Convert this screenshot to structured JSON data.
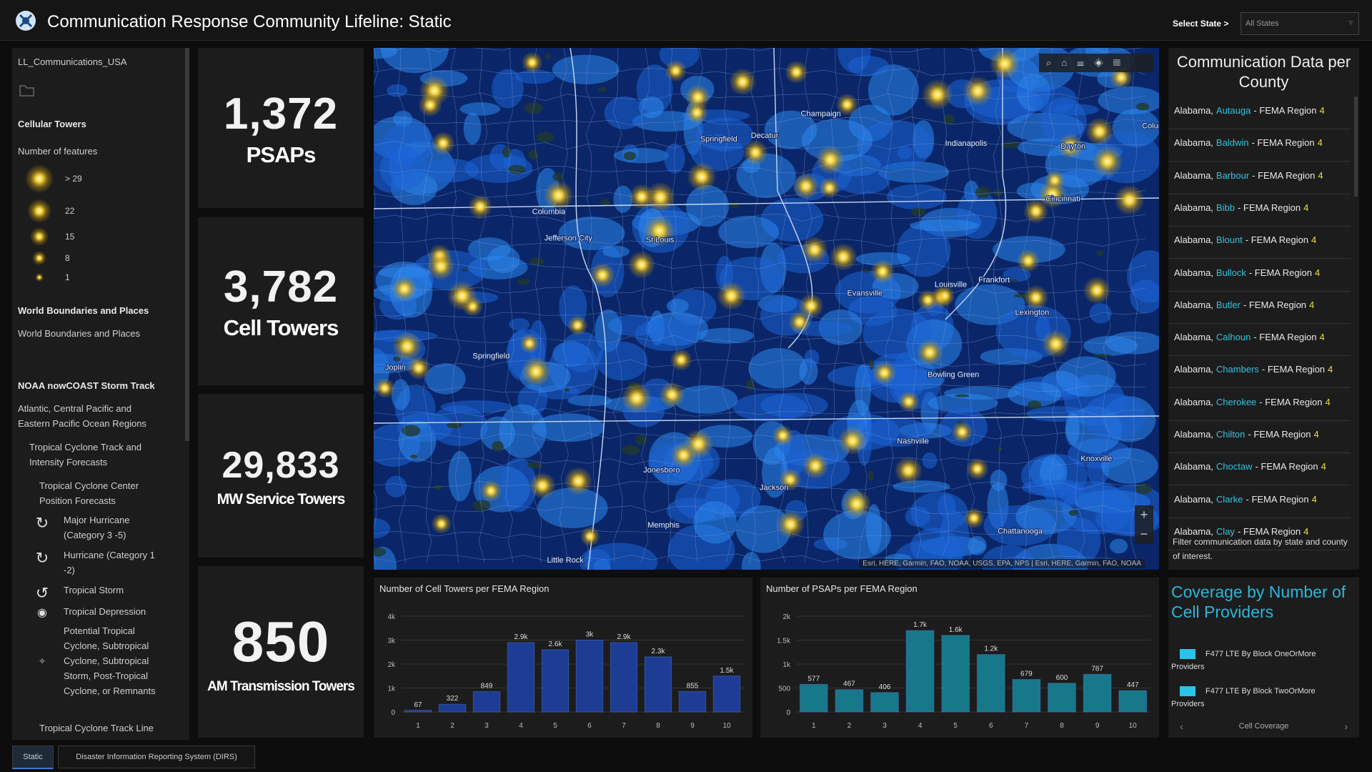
{
  "header": {
    "title": "Communication Response Community Lifeline: Static",
    "select_label": "Select State >",
    "select_value": "All States"
  },
  "layers": {
    "title": "LL_Communications_USA",
    "cellular": "Cellular Towers",
    "count_label": "Number of features",
    "sizes": [
      "> 29",
      "22",
      "15",
      "8",
      "1"
    ],
    "world_heading": "World Boundaries and Places",
    "world_item": "World Boundaries and Places",
    "noaa_heading": "NOAA nowCOAST Storm Track",
    "region_item": "Atlantic, Central Pacific and Eastern Pacific Ocean Regions",
    "track_item": "Tropical Cyclone Track and Intensity Forecasts",
    "center_item": "Tropical Cyclone Center Position Forecasts",
    "symbols": [
      "Major Hurricane (Category 3 -5)",
      "Hurricane (Category 1 -2)",
      "Tropical Storm",
      "Tropical Depression",
      "Potential Tropical Cyclone, Subtropical Cyclone, Subtropical Storm, Post-Tropical Cyclone, or Remnants"
    ],
    "track_line": "Tropical Cyclone Track Line"
  },
  "stats": [
    {
      "value": "1,372",
      "label": "PSAPs"
    },
    {
      "value": "3,782",
      "label": "Cell Towers"
    },
    {
      "value": "29,833",
      "label": "MW Service Towers"
    },
    {
      "value": "850",
      "label": "AM Transmission Towers"
    }
  ],
  "map": {
    "cities": [
      "Springfield",
      "Champaign",
      "Decatur",
      "Indianapolis",
      "Columbia",
      "Jefferson City",
      "St Louis",
      "Springfield",
      "Joplin",
      "Evansville",
      "Louisville",
      "Frankfort",
      "Bowling Green",
      "Nashville",
      "Knoxville",
      "Jackson",
      "Memphis",
      "Little Rock",
      "Chattanooga",
      "Jonesboro",
      "Cincinnati",
      "Dayton",
      "Columbus",
      "Lexington"
    ],
    "attribution": "Esri, HERE, Garmin, FAO, NOAA, USGS, EPA, NPS | Esri, HERE, Garmin, FAO, NOAA"
  },
  "county_list": {
    "title": "Communication Data per County",
    "items": [
      {
        "state": "Alabama,",
        "county": "Autauga",
        "label": "- FEMA Region",
        "region": "4"
      },
      {
        "state": "Alabama,",
        "county": "Baldwin",
        "label": "- FEMA Region",
        "region": "4"
      },
      {
        "state": "Alabama,",
        "county": "Barbour",
        "label": "- FEMA Region",
        "region": "4"
      },
      {
        "state": "Alabama,",
        "county": "Bibb",
        "label": "- FEMA Region",
        "region": "4"
      },
      {
        "state": "Alabama,",
        "county": "Blount",
        "label": "- FEMA Region",
        "region": "4"
      },
      {
        "state": "Alabama,",
        "county": "Bullock",
        "label": "- FEMA Region",
        "region": "4"
      },
      {
        "state": "Alabama,",
        "county": "Butler",
        "label": "- FEMA Region",
        "region": "4"
      },
      {
        "state": "Alabama,",
        "county": "Calhoun",
        "label": "- FEMA Region",
        "region": "4"
      },
      {
        "state": "Alabama,",
        "county": "Chambers",
        "label": "- FEMA Region",
        "region": "4"
      },
      {
        "state": "Alabama,",
        "county": "Cherokee",
        "label": "- FEMA Region",
        "region": "4"
      },
      {
        "state": "Alabama,",
        "county": "Chilton",
        "label": "- FEMA Region",
        "region": "4"
      },
      {
        "state": "Alabama,",
        "county": "Choctaw",
        "label": "- FEMA Region",
        "region": "4"
      },
      {
        "state": "Alabama,",
        "county": "Clarke",
        "label": "- FEMA Region",
        "region": "4"
      },
      {
        "state": "Alabama,",
        "county": "Clay",
        "label": "- FEMA Region",
        "region": "4"
      }
    ],
    "footer": "Filter communication data by state and county of interest."
  },
  "coverage": {
    "title": "Coverage by Number of Cell Providers",
    "legend": [
      "F477 LTE By Block OneOrMore Providers",
      "F477 LTE By Block TwoOrMore Providers"
    ],
    "nav": "Cell Coverage"
  },
  "tabs": [
    "Static",
    "Disaster Information Reporting System (DIRS)"
  ],
  "chart_data": [
    {
      "type": "bar",
      "title": "Number of Cell Towers per FEMA Region",
      "categories": [
        "1",
        "2",
        "3",
        "4",
        "5",
        "6",
        "7",
        "8",
        "9",
        "10"
      ],
      "values": [
        67,
        322,
        849,
        2900,
        2600,
        3000,
        2900,
        2300,
        855,
        1500
      ],
      "value_labels": [
        "67",
        "322",
        "849",
        "2.9k",
        "2.6k",
        "3k",
        "2.9k",
        "2.3k",
        "855",
        "1.5k"
      ],
      "color": "#1d3c94",
      "ylim": [
        0,
        4000
      ],
      "yticks": [
        0,
        {
          "value": 1000,
          "label": "1k"
        },
        {
          "value": 2000,
          "label": "2k"
        },
        {
          "value": 3000,
          "label": "3k"
        },
        {
          "value": 4000,
          "label": "4k"
        }
      ],
      "grid": true
    },
    {
      "type": "bar",
      "title": "Number of PSAPs per FEMA Region",
      "categories": [
        "1",
        "2",
        "3",
        "4",
        "5",
        "6",
        "7",
        "8",
        "9",
        "10"
      ],
      "values": [
        577,
        467,
        406,
        1700,
        1600,
        1200,
        679,
        600,
        787,
        447
      ],
      "value_labels": [
        "577",
        "467",
        "406",
        "1.7k",
        "1.6k",
        "1.2k",
        "679",
        "600",
        "787",
        "447"
      ],
      "color": "#17788a",
      "ylim": [
        0,
        2000
      ],
      "yticks": [
        0,
        500,
        {
          "value": 1000,
          "label": "1k"
        },
        {
          "value": 1500,
          "label": "1.5k"
        },
        {
          "value": 2000,
          "label": "2k"
        }
      ],
      "grid": true
    }
  ]
}
